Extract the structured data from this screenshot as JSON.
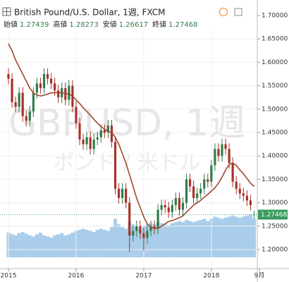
{
  "chart_data": {
    "type": "candlestick",
    "title": "British Pound/U.S. Dollar, 1週, FXCM",
    "watermark": "GBPUSD, 1週",
    "watermark_sub": "ポンド / 米ドル",
    "ohlc_labels": [
      "始値",
      "高値",
      "安値",
      "終値"
    ],
    "up_color": "#2f7d4a",
    "down_color": "#a8322a",
    "ma_color": "#a0472a",
    "volume_color": "#a9cdea",
    "price_line_color": "#3a9a5e",
    "ylim": [
      1.19,
      1.72
    ],
    "yticks": [
      {
        "value": 1.2,
        "label": "1.20000"
      },
      {
        "value": 1.25,
        "label": "1.25000"
      },
      {
        "value": 1.3,
        "label": "1.30000"
      },
      {
        "value": 1.35,
        "label": "1.35000"
      },
      {
        "value": 1.4,
        "label": "1.40000"
      },
      {
        "value": 1.45,
        "label": "1.45000"
      },
      {
        "value": 1.5,
        "label": "1.50000"
      },
      {
        "value": 1.55,
        "label": "1.55000"
      },
      {
        "value": 1.6,
        "label": "1.60000"
      },
      {
        "value": 1.65,
        "label": "1.65000"
      },
      {
        "value": 1.7,
        "label": "1.70000"
      }
    ],
    "xlim": [
      -1,
      71
    ],
    "xticks": [
      {
        "value": 0,
        "label": "2015"
      },
      {
        "value": 19,
        "label": "2016"
      },
      {
        "value": 38,
        "label": "2017"
      },
      {
        "value": 57,
        "label": "2018"
      },
      {
        "value": 70.5,
        "label": "9月"
      }
    ],
    "open": [
      1.575,
      1.565,
      1.515,
      1.505,
      1.535,
      1.485,
      1.475,
      1.495,
      1.535,
      1.555,
      1.545,
      1.575,
      1.565,
      1.555,
      1.54,
      1.525,
      1.545,
      1.52,
      1.55,
      1.505,
      1.47,
      1.435,
      1.425,
      1.44,
      1.415,
      1.435,
      1.44,
      1.455,
      1.45,
      1.465,
      1.43,
      1.33,
      1.31,
      1.33,
      1.3,
      1.23,
      1.24,
      1.25,
      1.235,
      1.225,
      1.24,
      1.25,
      1.245,
      1.285,
      1.295,
      1.29,
      1.28,
      1.295,
      1.31,
      1.285,
      1.3,
      1.35,
      1.335,
      1.31,
      1.32,
      1.33,
      1.35,
      1.345,
      1.38,
      1.415,
      1.4,
      1.425,
      1.415,
      1.385,
      1.345,
      1.33,
      1.32,
      1.315,
      1.305,
      1.27439
    ],
    "high": [
      1.587,
      1.577,
      1.527,
      1.547,
      1.547,
      1.497,
      1.507,
      1.547,
      1.567,
      1.567,
      1.587,
      1.587,
      1.577,
      1.567,
      1.552,
      1.557,
      1.557,
      1.562,
      1.562,
      1.517,
      1.482,
      1.447,
      1.452,
      1.452,
      1.447,
      1.452,
      1.467,
      1.467,
      1.477,
      1.477,
      1.442,
      1.342,
      1.342,
      1.342,
      1.312,
      1.252,
      1.262,
      1.262,
      1.247,
      1.252,
      1.262,
      1.262,
      1.297,
      1.307,
      1.307,
      1.302,
      1.307,
      1.322,
      1.322,
      1.312,
      1.362,
      1.362,
      1.347,
      1.332,
      1.342,
      1.362,
      1.362,
      1.392,
      1.427,
      1.427,
      1.437,
      1.437,
      1.427,
      1.397,
      1.357,
      1.342,
      1.332,
      1.327,
      1.317,
      1.28273
    ],
    "low": [
      1.553,
      1.503,
      1.493,
      1.493,
      1.473,
      1.463,
      1.463,
      1.483,
      1.523,
      1.533,
      1.533,
      1.553,
      1.543,
      1.528,
      1.513,
      1.513,
      1.508,
      1.508,
      1.493,
      1.458,
      1.423,
      1.413,
      1.413,
      1.403,
      1.403,
      1.423,
      1.428,
      1.438,
      1.438,
      1.418,
      1.318,
      1.298,
      1.298,
      1.288,
      1.195,
      1.218,
      1.228,
      1.223,
      1.198,
      1.213,
      1.228,
      1.233,
      1.233,
      1.273,
      1.278,
      1.268,
      1.268,
      1.283,
      1.273,
      1.273,
      1.288,
      1.323,
      1.298,
      1.298,
      1.308,
      1.318,
      1.333,
      1.333,
      1.368,
      1.388,
      1.388,
      1.403,
      1.373,
      1.333,
      1.318,
      1.308,
      1.303,
      1.293,
      1.283,
      1.26617
    ],
    "close": [
      1.565,
      1.515,
      1.505,
      1.535,
      1.485,
      1.475,
      1.495,
      1.535,
      1.555,
      1.545,
      1.575,
      1.565,
      1.555,
      1.54,
      1.525,
      1.545,
      1.52,
      1.55,
      1.505,
      1.47,
      1.435,
      1.425,
      1.44,
      1.415,
      1.435,
      1.44,
      1.455,
      1.45,
      1.465,
      1.43,
      1.33,
      1.31,
      1.33,
      1.3,
      1.23,
      1.24,
      1.25,
      1.235,
      1.225,
      1.24,
      1.25,
      1.245,
      1.285,
      1.295,
      1.29,
      1.28,
      1.295,
      1.31,
      1.285,
      1.3,
      1.35,
      1.335,
      1.31,
      1.32,
      1.33,
      1.35,
      1.345,
      1.38,
      1.415,
      1.4,
      1.425,
      1.415,
      1.385,
      1.345,
      1.33,
      1.32,
      1.315,
      1.305,
      1.295,
      1.27468
    ],
    "ma": [
      1.64,
      1.625,
      1.605,
      1.59,
      1.575,
      1.56,
      1.545,
      1.535,
      1.53,
      1.528,
      1.53,
      1.532,
      1.535,
      1.535,
      1.536,
      1.535,
      1.533,
      1.532,
      1.528,
      1.52,
      1.512,
      1.503,
      1.495,
      1.487,
      1.478,
      1.47,
      1.463,
      1.457,
      1.452,
      1.45,
      1.44,
      1.425,
      1.405,
      1.385,
      1.36,
      1.335,
      1.31,
      1.29,
      1.27,
      1.255,
      1.248,
      1.245,
      1.245,
      1.25,
      1.255,
      1.26,
      1.262,
      1.265,
      1.268,
      1.272,
      1.28,
      1.287,
      1.295,
      1.3,
      1.305,
      1.312,
      1.318,
      1.325,
      1.332,
      1.342,
      1.355,
      1.37,
      1.382,
      1.385,
      1.38,
      1.37,
      1.362,
      1.352,
      1.342,
      1.335
    ],
    "volume_lim": [
      0,
      100
    ],
    "volume": [
      45,
      42,
      40,
      44,
      46,
      43,
      40,
      38,
      42,
      45,
      40,
      38,
      36,
      40,
      42,
      44,
      40,
      42,
      45,
      48,
      50,
      52,
      50,
      48,
      46,
      50,
      52,
      50,
      48,
      55,
      70,
      60,
      55,
      52,
      65,
      60,
      55,
      50,
      58,
      60,
      62,
      60,
      64,
      62,
      60,
      58,
      62,
      64,
      66,
      64,
      68,
      66,
      64,
      66,
      68,
      70,
      66,
      70,
      74,
      72,
      70,
      72,
      74,
      76,
      74,
      72,
      74,
      76,
      78,
      70
    ]
  }
}
